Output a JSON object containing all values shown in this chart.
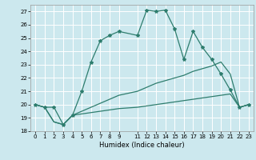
{
  "title": "",
  "xlabel": "Humidex (Indice chaleur)",
  "bg_color": "#cce8ee",
  "grid_color": "#ffffff",
  "line_color": "#2e7d6e",
  "xlim": [
    -0.5,
    23.5
  ],
  "ylim": [
    18,
    27.5
  ],
  "xticks": [
    0,
    1,
    2,
    3,
    4,
    5,
    6,
    7,
    8,
    9,
    11,
    12,
    13,
    14,
    15,
    16,
    17,
    18,
    19,
    20,
    21,
    22,
    23
  ],
  "yticks": [
    18,
    19,
    20,
    21,
    22,
    23,
    24,
    25,
    26,
    27
  ],
  "series": [
    {
      "x": [
        0,
        1,
        2,
        3,
        4,
        5,
        6,
        7,
        8,
        9,
        11,
        12,
        13,
        14,
        15,
        16,
        17,
        18,
        19,
        20,
        21,
        22,
        23
      ],
      "y": [
        20.0,
        19.8,
        18.7,
        18.5,
        19.2,
        19.3,
        19.4,
        19.5,
        19.6,
        19.7,
        19.8,
        19.9,
        20.0,
        20.1,
        20.2,
        20.3,
        20.4,
        20.5,
        20.6,
        20.7,
        20.8,
        19.8,
        20.0
      ],
      "marker": false
    },
    {
      "x": [
        0,
        1,
        2,
        3,
        4,
        5,
        6,
        7,
        8,
        9,
        11,
        12,
        13,
        14,
        15,
        16,
        17,
        18,
        19,
        20,
        21,
        22,
        23
      ],
      "y": [
        20.0,
        19.8,
        18.7,
        18.5,
        19.2,
        19.5,
        19.8,
        20.1,
        20.4,
        20.7,
        21.0,
        21.3,
        21.6,
        21.8,
        22.0,
        22.2,
        22.5,
        22.7,
        22.9,
        23.2,
        22.3,
        19.8,
        20.0
      ],
      "marker": false
    },
    {
      "x": [
        0,
        1,
        2,
        3,
        4,
        5,
        6,
        7,
        8,
        9,
        11,
        12,
        13,
        14,
        15,
        16,
        17,
        18,
        19,
        20,
        21,
        22,
        23
      ],
      "y": [
        20.0,
        19.8,
        19.8,
        18.5,
        19.2,
        21.0,
        23.2,
        24.8,
        25.2,
        25.5,
        25.2,
        27.1,
        27.0,
        27.1,
        25.7,
        23.4,
        25.5,
        24.3,
        23.4,
        22.3,
        21.1,
        19.8,
        20.0
      ],
      "marker": true
    }
  ]
}
